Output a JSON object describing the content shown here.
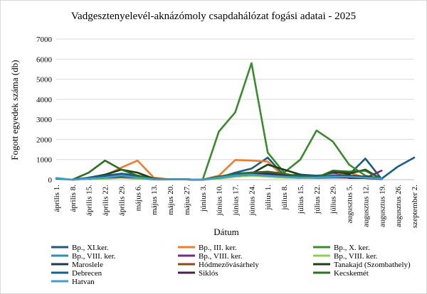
{
  "chart_data": {
    "type": "line",
    "title": "Vadgesztenyelevél-aknázómoly csapdahálózat fogási adatai - 2025",
    "xlabel": "Dátum",
    "ylabel": "Fogott egyedek száma (db)",
    "ylim": [
      0,
      7000
    ],
    "yticks": [
      0,
      1000,
      2000,
      3000,
      4000,
      5000,
      6000,
      7000
    ],
    "grid": true,
    "legend_position": "bottom",
    "categories": [
      "április 1.",
      "április 8.",
      "április 15.",
      "április 22.",
      "április 29.",
      "május 6.",
      "május 13.",
      "május 20.",
      "május 27.",
      "június 3.",
      "június 10.",
      "június 17.",
      "június 24.",
      "július 1.",
      "július 8.",
      "július 15.",
      "július 22.",
      "július 29.",
      "augusztus 5.",
      "augusztus 12.",
      "augusztus 19.",
      "augusztus 26.",
      "szeptember 2."
    ],
    "series": [
      {
        "name": "Bp., XI.ker.",
        "color": "#1f5b7a",
        "values": [
          null,
          0,
          50,
          150,
          300,
          200,
          30,
          10,
          10,
          0,
          100,
          350,
          550,
          1100,
          200,
          250,
          200,
          250,
          250,
          1050,
          30,
          null,
          null
        ]
      },
      {
        "name": "Bp., III. ker.",
        "color": "#ed7d31",
        "values": [
          null,
          null,
          100,
          200,
          600,
          950,
          100,
          10,
          10,
          0,
          200,
          980,
          950,
          900,
          150,
          100,
          100,
          200,
          350,
          100,
          50,
          null,
          null
        ]
      },
      {
        "name": "Bp., X. ker.",
        "color": "#3a8a2e",
        "values": [
          null,
          null,
          50,
          100,
          200,
          100,
          20,
          10,
          10,
          0,
          2400,
          3350,
          5800,
          1350,
          350,
          1000,
          2450,
          1900,
          750,
          200,
          30,
          null,
          null
        ]
      },
      {
        "name": "Bp., VIII. ker.",
        "color": "#2f8fb0",
        "values": [
          null,
          0,
          50,
          100,
          150,
          100,
          20,
          10,
          10,
          0,
          100,
          200,
          250,
          300,
          150,
          100,
          80,
          100,
          100,
          80,
          30,
          null,
          null
        ]
      },
      {
        "name": "Bp., VIII. ker.",
        "color": "#7a2a7a",
        "values": [
          null,
          null,
          30,
          80,
          120,
          80,
          15,
          10,
          10,
          0,
          80,
          250,
          350,
          300,
          200,
          150,
          100,
          350,
          80,
          80,
          450,
          null,
          null
        ]
      },
      {
        "name": "Bp., VIII. ker.",
        "color": "#8ccf5a",
        "values": [
          null,
          null,
          20,
          50,
          100,
          50,
          10,
          10,
          10,
          0,
          50,
          150,
          200,
          150,
          100,
          80,
          100,
          250,
          150,
          100,
          50,
          null,
          null
        ]
      },
      {
        "name": "Maroslele",
        "color": "#1b3a4f",
        "values": [
          null,
          null,
          50,
          150,
          250,
          150,
          30,
          10,
          10,
          0,
          100,
          200,
          300,
          250,
          200,
          150,
          120,
          200,
          200,
          150,
          50,
          null,
          null
        ]
      },
      {
        "name": "Hódmezővásárhely",
        "color": "#8a4a14",
        "values": [
          null,
          null,
          50,
          150,
          250,
          150,
          30,
          10,
          10,
          0,
          100,
          200,
          250,
          200,
          150,
          100,
          100,
          150,
          150,
          100,
          50,
          null,
          null
        ]
      },
      {
        "name": "Tanakajd (Szombathely)",
        "color": "#1f3d12",
        "values": [
          null,
          null,
          100,
          250,
          500,
          350,
          50,
          10,
          10,
          0,
          150,
          250,
          300,
          750,
          500,
          250,
          120,
          400,
          300,
          500,
          30,
          null,
          null
        ]
      },
      {
        "name": "Debrecen",
        "color": "#175f8a",
        "values": [
          50,
          0,
          100,
          200,
          300,
          200,
          30,
          10,
          10,
          0,
          150,
          300,
          350,
          300,
          250,
          200,
          150,
          200,
          150,
          100,
          50,
          650,
          1100
        ]
      },
      {
        "name": "Siklós",
        "color": "#4a1f4a",
        "values": [
          null,
          null,
          50,
          100,
          150,
          100,
          20,
          10,
          10,
          0,
          100,
          200,
          250,
          300,
          200,
          100,
          100,
          150,
          100,
          80,
          30,
          null,
          null
        ]
      },
      {
        "name": "Kecskemét",
        "color": "#2d6e24",
        "values": [
          null,
          0,
          350,
          950,
          500,
          200,
          30,
          10,
          10,
          0,
          150,
          250,
          350,
          400,
          300,
          150,
          100,
          450,
          400,
          450,
          30,
          null,
          null
        ]
      },
      {
        "name": "Hatvan",
        "color": "#3f9fc9",
        "values": [
          80,
          0,
          50,
          100,
          200,
          100,
          20,
          10,
          10,
          0,
          100,
          200,
          250,
          200,
          150,
          100,
          100,
          150,
          150,
          100,
          50,
          null,
          null
        ]
      }
    ]
  }
}
